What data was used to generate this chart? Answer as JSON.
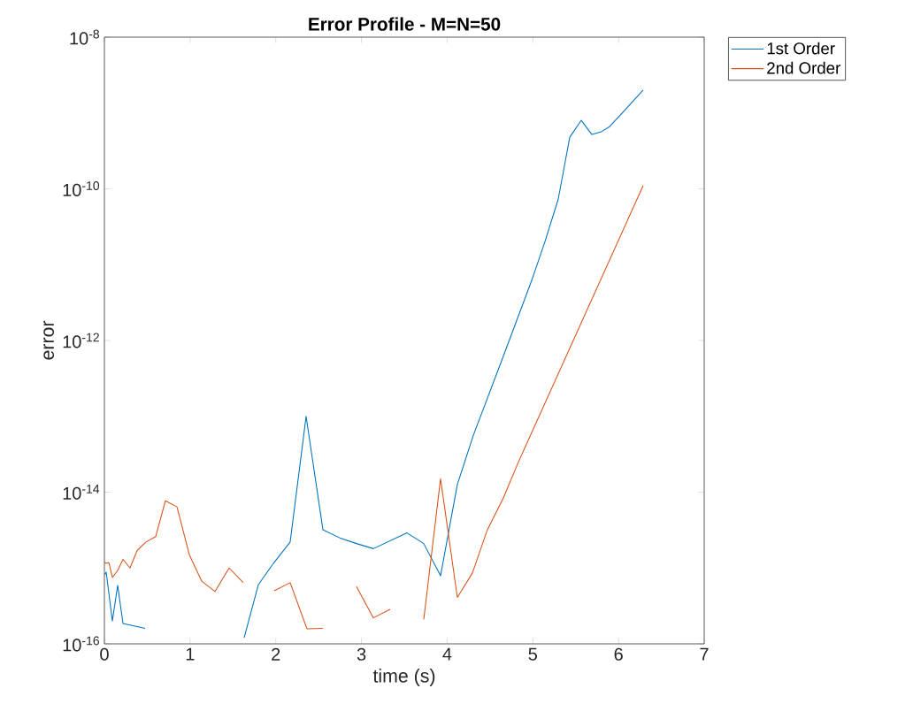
{
  "chart_data": {
    "type": "line",
    "title": "Error Profile - M=N=50",
    "xlabel": "time (s)",
    "ylabel": "error",
    "log": "y",
    "legend": "top right",
    "grid": false,
    "xlim": [
      0,
      7
    ],
    "xticks": [
      0,
      1,
      2,
      3,
      4,
      5,
      6,
      7
    ],
    "ylim": [
      1e-16,
      1e-08
    ],
    "yticks": [
      {
        "value": 1e-16,
        "label": "10$^{-16}$"
      },
      {
        "value": 1e-14,
        "label": "10$^{-14}$"
      },
      {
        "value": 1e-12,
        "label": "10$^{-12}$"
      },
      {
        "value": 1e-10,
        "label": "10$^{-10}$"
      },
      {
        "value": 1e-08,
        "label": "10$^{-8}$"
      }
    ],
    "series": [
      {
        "name": "1st Order",
        "color": "#0072bd",
        "x": [
          0,
          0.021,
          0.093,
          0.155,
          0.217,
          0.475,
          1.05,
          1.631,
          1.796,
          1.972,
          2.168,
          2.354,
          2.55,
          2.746,
          2.942,
          3.139,
          3.531,
          3.727,
          3.923,
          4.119,
          4.305,
          4.646,
          4.987,
          5.141,
          5.296,
          5.431,
          5.565,
          5.689,
          5.792,
          5.895,
          6.04,
          6.287
        ],
        "values": [
          8.1e-16,
          8.8e-16,
          2e-16,
          5.9e-16,
          1.85e-16,
          1.6e-16,
          null,
          1.2e-16,
          6e-16,
          1.15e-15,
          2.2e-15,
          1e-13,
          3.2e-15,
          2.5e-15,
          2.1e-15,
          1.8e-15,
          2.9e-15,
          2.1e-15,
          7.9e-16,
          1.26e-14,
          5.6e-14,
          5.8e-13,
          6.2e-12,
          2e-11,
          7.3e-11,
          4.8e-10,
          8e-10,
          5.2e-10,
          5.6e-10,
          6.6e-10,
          9.9e-10,
          2e-09
        ]
      },
      {
        "name": "2nd Order",
        "color": "#d95319",
        "x": [
          0,
          0.021,
          0.052,
          0.093,
          0.155,
          0.217,
          0.299,
          0.382,
          0.485,
          0.599,
          0.712,
          0.847,
          0.991,
          1.136,
          1.291,
          1.456,
          1.621,
          1.8,
          1.982,
          2.168,
          2.364,
          2.55,
          2.75,
          2.942,
          3.139,
          3.335,
          3.53,
          3.727,
          3.923,
          4.119,
          4.295,
          4.47,
          4.656,
          4.832,
          6.287
        ],
        "values": [
          1.2e-15,
          1.15e-15,
          1.18e-15,
          7.5e-16,
          9.3e-16,
          1.3e-15,
          1e-15,
          1.7e-15,
          2.2e-15,
          2.6e-15,
          7.7e-15,
          6.4e-15,
          1.5e-15,
          6.7e-16,
          4.9e-16,
          1e-15,
          6.4e-16,
          null,
          5e-16,
          6.4e-16,
          1.58e-16,
          1.6e-16,
          null,
          5.7e-16,
          2.2e-16,
          2.85e-16,
          null,
          2.1e-16,
          1.5e-14,
          4.1e-16,
          8.6e-16,
          3.2e-15,
          8.4e-15,
          2.5e-14,
          1.1e-10
        ]
      }
    ]
  }
}
